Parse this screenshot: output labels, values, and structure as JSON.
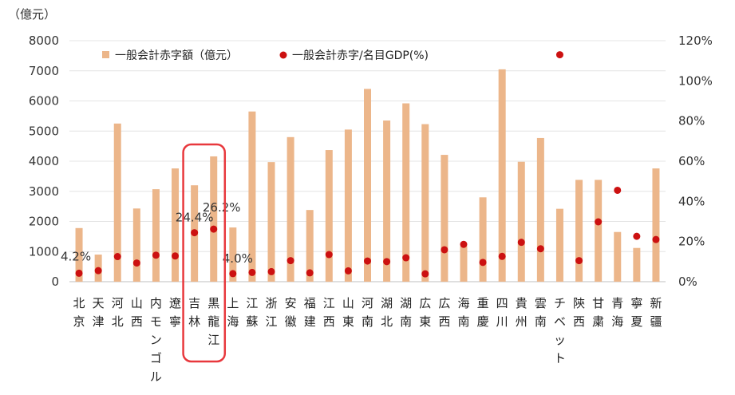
{
  "chart_data": {
    "type": "bar",
    "y_unit_label": "（億元）",
    "categories": [
      "北京",
      "天津",
      "河北",
      "山西",
      "内モンゴル",
      "遼寧",
      "吉林",
      "黒龍江",
      "上海",
      "江蘇",
      "浙江",
      "安徽",
      "福建",
      "江西",
      "山東",
      "河南",
      "湖北",
      "湖南",
      "広東",
      "広西",
      "海南",
      "重慶",
      "四川",
      "貴州",
      "雲南",
      "チベット",
      "陝西",
      "甘粛",
      "青海",
      "寧夏",
      "新疆"
    ],
    "left_axis": {
      "min": 0,
      "max": 8000,
      "ticks": [
        "0",
        "1000",
        "2000",
        "3000",
        "4000",
        "5000",
        "6000",
        "7000",
        "8000"
      ]
    },
    "right_axis": {
      "min": 0,
      "max": 120,
      "ticks": [
        "0%",
        "20%",
        "40%",
        "60%",
        "80%",
        "100%",
        "120%"
      ]
    },
    "series": [
      {
        "name": "一般会計赤字額（億元）",
        "type": "bar",
        "axis": "left",
        "color": "#ecb68a",
        "values": [
          1780,
          900,
          5250,
          2430,
          3070,
          3760,
          3200,
          4160,
          1800,
          5650,
          3970,
          4800,
          2380,
          4370,
          5050,
          6400,
          5350,
          5920,
          5230,
          4210,
          1180,
          2800,
          7050,
          3980,
          4770,
          2420,
          3380,
          3380,
          1650,
          1120,
          3760
        ]
      },
      {
        "name": "一般会計赤字/名目GDP(%)",
        "type": "scatter",
        "axis": "right",
        "color": "#cc1111",
        "values": [
          4.2,
          5.5,
          12.5,
          9.3,
          13.2,
          12.8,
          24.4,
          26.2,
          4.0,
          4.6,
          5.0,
          10.5,
          4.4,
          13.5,
          5.4,
          10.3,
          10.0,
          11.9,
          3.9,
          15.9,
          18.6,
          9.6,
          12.6,
          19.6,
          16.4,
          113.0,
          10.5,
          29.8,
          45.5,
          22.6,
          21.0
        ]
      }
    ],
    "data_labels": [
      {
        "category": "北京",
        "text": "4.2%"
      },
      {
        "category": "吉林",
        "text": "24.4%"
      },
      {
        "category": "黒龍江",
        "text": "26.2%"
      },
      {
        "category": "上海",
        "text": "4.0%"
      }
    ],
    "highlight": {
      "categories": [
        "吉林",
        "黒龍江"
      ],
      "color": "#e8383d"
    },
    "legend": {
      "placement": "top-left",
      "items": [
        "一般会計赤字額（億元）",
        "一般会計赤字/名目GDP(%)"
      ]
    },
    "grid": true
  }
}
